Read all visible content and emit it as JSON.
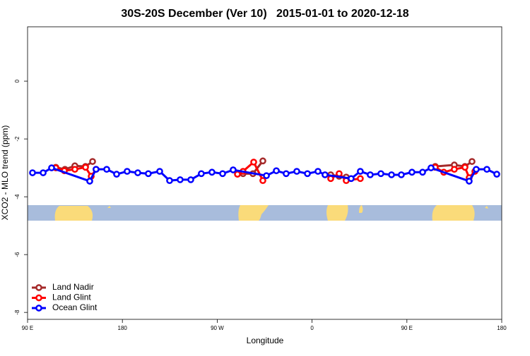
{
  "chart_data": {
    "type": "line",
    "title": "30S-20S December (Ver 10)   2015-01-01 to 2020-12-18",
    "xlabel": "Longitude",
    "ylabel": "XCO2 - MLO trend (ppm)",
    "xlim": [
      90,
      540
    ],
    "ylim": [
      -8.24,
      1.88
    ],
    "xticks": [
      {
        "value": 90,
        "label": "90 E"
      },
      180,
      {
        "value": 270,
        "label": "90 W"
      },
      {
        "value": 360,
        "label": "0"
      },
      {
        "value": 450,
        "label": "90 E"
      },
      {
        "value": 540,
        "label": "180"
      }
    ],
    "yticks": [
      0,
      -2,
      -4,
      -6,
      -8
    ],
    "legend": "bottom-left",
    "series": [
      {
        "name": "Land Nadir",
        "color": "#a52a2a",
        "x": [
          116.8,
          125.5,
          134.9,
          145.0,
          151.7,
          null,
          294.5,
          303.9,
          313.3,
          null,
          377.7,
          385.7,
          392.4,
          null,
          476.9,
          495.0,
          505.1,
          511.8
        ],
        "values": [
          -2.98,
          -3.05,
          -2.93,
          -2.95,
          -2.78,
          null,
          -3.2,
          -3.2,
          -2.76,
          null,
          -3.24,
          -3.29,
          -3.32,
          null,
          -2.95,
          -2.9,
          -2.95,
          -2.78
        ]
      },
      {
        "name": "Land Glint",
        "color": "#ff0000",
        "x": [
          116.8,
          124.9,
          134.9,
          145.0,
          150.4,
          155.0,
          null,
          289.2,
          294.5,
          304.6,
          313.3,
          null,
          377.7,
          385.7,
          392.4,
          405.8,
          null,
          476.9,
          485.0,
          495.0,
          505.1,
          509.1,
          514.5
        ],
        "values": [
          -3.0,
          -3.1,
          -3.05,
          -2.98,
          -3.29,
          -3.05,
          null,
          -3.22,
          -3.12,
          -2.8,
          -3.44,
          null,
          -3.37,
          -3.2,
          -3.44,
          -3.37,
          null,
          -2.98,
          -3.15,
          -3.05,
          -2.98,
          -3.34,
          -3.12
        ]
      },
      {
        "name": "Ocean Glint",
        "color": "#0000ff",
        "x": [
          94.7,
          104.8,
          112.8,
          149.0,
          155.0,
          165.1,
          174.5,
          184.5,
          194.6,
          204.6,
          215.4,
          224.8,
          234.8,
          244.9,
          254.9,
          265.0,
          275.1,
          285.1,
          316.7,
          326.1,
          335.4,
          345.5,
          355.6,
          365.6,
          372.3,
          397.1,
          405.8,
          415.2,
          425.3,
          435.4,
          444.7,
          454.8,
          464.9,
          472.9,
          509.1,
          515.8,
          525.9,
          535.3
        ],
        "values": [
          -3.17,
          -3.17,
          -3.0,
          -3.46,
          -3.05,
          -3.05,
          -3.22,
          -3.12,
          -3.17,
          -3.2,
          -3.12,
          -3.44,
          -3.41,
          -3.41,
          -3.2,
          -3.15,
          -3.2,
          -3.07,
          -3.27,
          -3.1,
          -3.2,
          -3.12,
          -3.2,
          -3.12,
          -3.24,
          -3.37,
          -3.12,
          -3.24,
          -3.2,
          -3.24,
          -3.24,
          -3.15,
          -3.15,
          -3.0,
          -3.46,
          -3.05,
          -3.05,
          -3.22
        ]
      }
    ]
  }
}
